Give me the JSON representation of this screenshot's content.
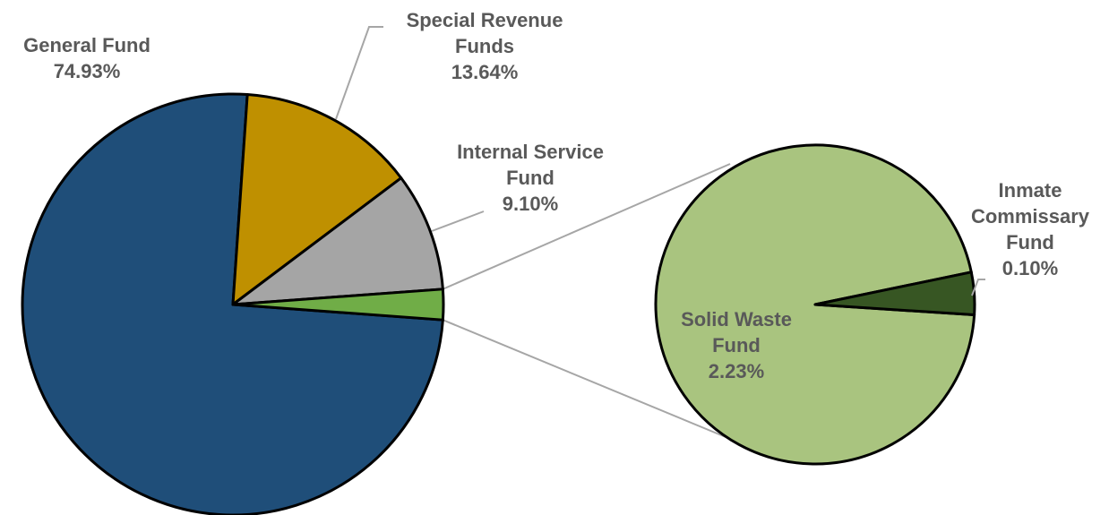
{
  "chart_data": {
    "type": "pie-of-pie",
    "categories": [
      "General Fund",
      "Special Revenue Funds",
      "Internal Service Fund"
    ],
    "values": [
      74.93,
      13.64,
      9.1
    ],
    "value_labels": [
      "74.93%",
      "13.64%",
      "9.10%"
    ],
    "colors": [
      "#1f4e79",
      "#bf9000",
      "#a5a5a5"
    ],
    "other_color": "#70ad47",
    "secondary": {
      "categories": [
        "Solid Waste Fund",
        "Inmate Commissary Fund"
      ],
      "values": [
        2.23,
        0.1
      ],
      "value_labels": [
        "2.23%",
        "0.10%"
      ],
      "colors": [
        "#a9c47f",
        "#375623"
      ]
    }
  }
}
